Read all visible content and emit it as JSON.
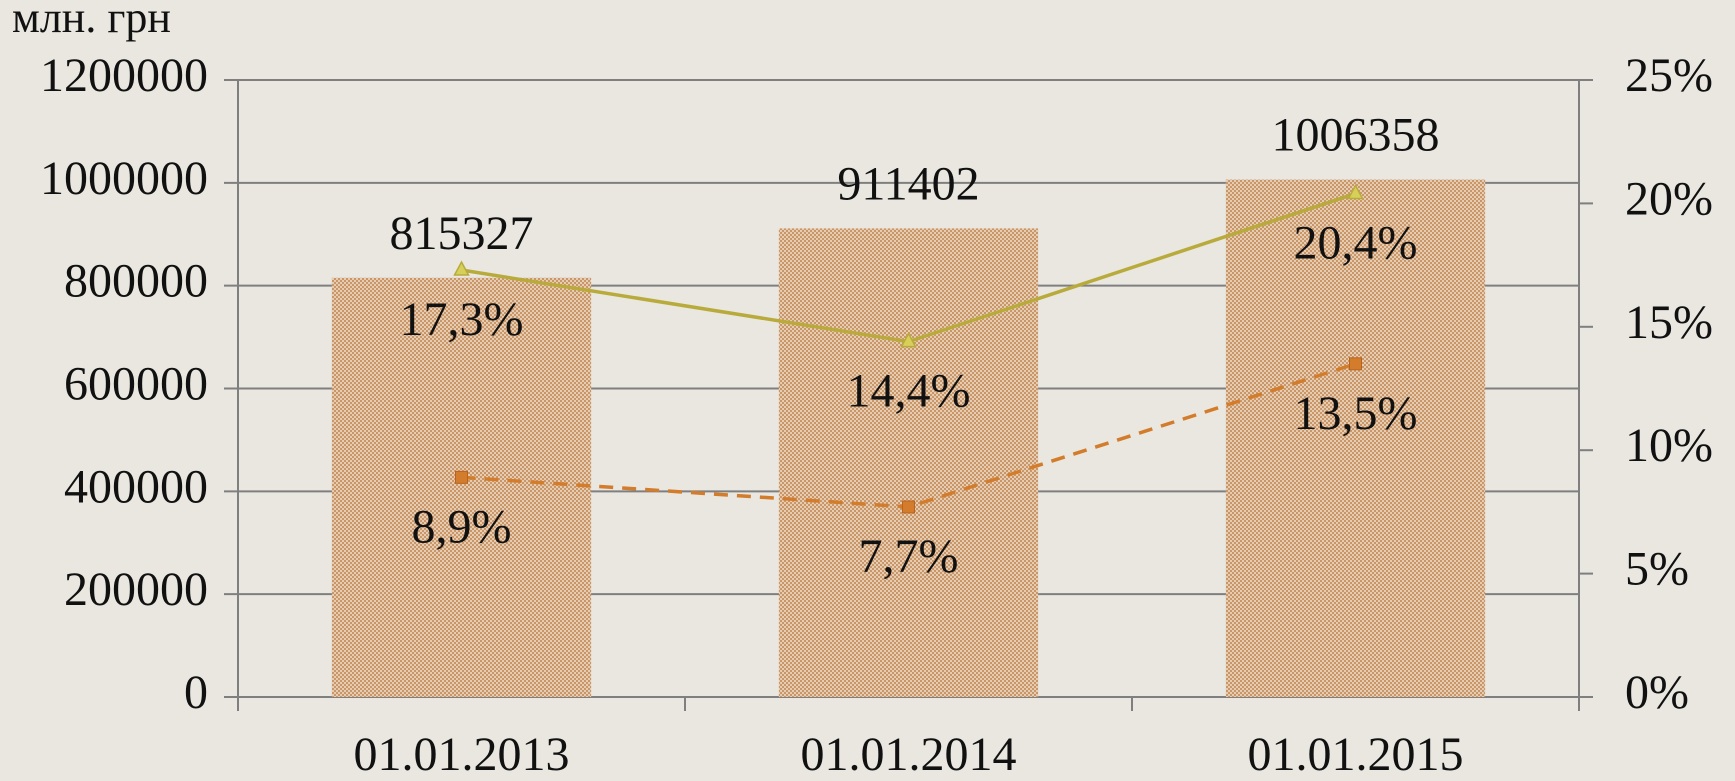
{
  "chart_data": {
    "type": "bar_line",
    "y_axis_label": "млн. грн",
    "categories": [
      "01.01.2013",
      "01.01.2014",
      "01.01.2015"
    ],
    "values": [
      815327,
      911402,
      1006358
    ],
    "color": "#d8b48e",
    "series": [
      {
        "color": "#b8ab3c",
        "marker": "triangle",
        "line_style": "solid",
        "axis": "y2",
        "values": [
          17.3,
          14.4,
          20.4
        ],
        "value_labels": [
          "17,3%",
          "14,4%",
          "20,4%"
        ]
      },
      {
        "color": "#d27c2c",
        "marker": "square",
        "line_style": "dashed",
        "axis": "y2",
        "values": [
          8.9,
          7.7,
          13.5
        ],
        "value_labels": [
          "8,9%",
          "7,7%",
          "13,5%"
        ]
      }
    ],
    "ylim": [
      0,
      1200000
    ],
    "yticks": [
      0,
      200000,
      400000,
      600000,
      800000,
      1000000,
      1200000
    ],
    "y2lim": [
      0,
      25
    ],
    "y2ticks": [
      {
        "value": 0,
        "label": "0%"
      },
      {
        "value": 5,
        "label": "5%"
      },
      {
        "value": 10,
        "label": "10%"
      },
      {
        "value": 15,
        "label": "15%"
      },
      {
        "value": 20,
        "label": "20%"
      },
      {
        "value": 25,
        "label": "25%"
      }
    ],
    "grid": true
  }
}
